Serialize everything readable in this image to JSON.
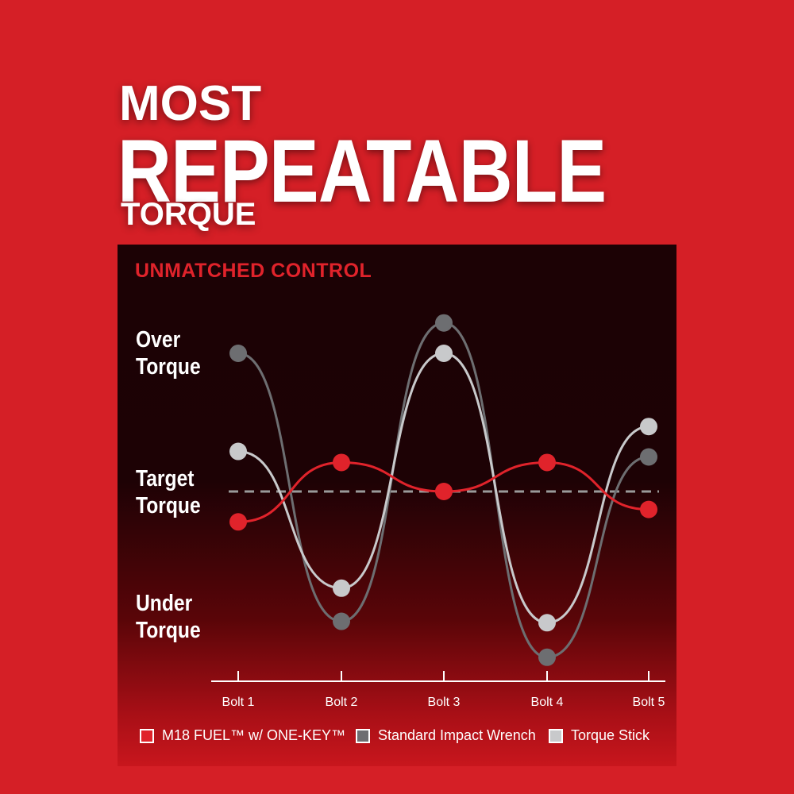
{
  "headline": {
    "line1": "MOST",
    "line2": "REPEATABLE",
    "line3": "TORQUE"
  },
  "chart_data": {
    "type": "line",
    "title": "UNMATCHED CONTROL",
    "categories": [
      "Bolt 1",
      "Bolt 2",
      "Bolt 3",
      "Bolt 4",
      "Bolt 5"
    ],
    "y_labels": {
      "over": [
        "Over",
        "Torque"
      ],
      "target": [
        "Target",
        "Torque"
      ],
      "under": [
        "Under",
        "Torque"
      ]
    },
    "y_label_levels": {
      "over": 1,
      "target": 0,
      "under": -1
    },
    "ylim": [
      -1.35,
      1.35
    ],
    "target_line": 0,
    "grid": false,
    "legend_position": "bottom",
    "series": [
      {
        "name": "M18 FUEL™ w/ ONE-KEY™",
        "color": "#e0232b",
        "values": [
          -0.22,
          0.21,
          0.0,
          0.21,
          -0.13
        ]
      },
      {
        "name": "Standard Impact Wrench",
        "color": "#6d6e71",
        "values": [
          1.0,
          -0.94,
          1.22,
          -1.2,
          0.25
        ]
      },
      {
        "name": "Torque Stick",
        "color": "#c8c9cb",
        "values": [
          0.29,
          -0.7,
          1.0,
          -0.95,
          0.47
        ]
      }
    ]
  }
}
